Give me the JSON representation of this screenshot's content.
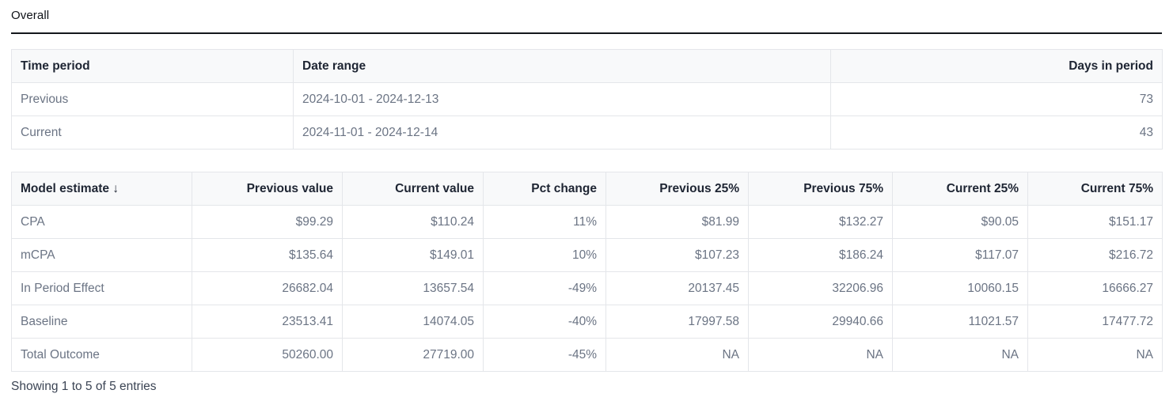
{
  "title": "Overall",
  "periods_table": {
    "columns": [
      {
        "key": "time_period",
        "label": "Time period",
        "align": "left"
      },
      {
        "key": "date_range",
        "label": "Date range",
        "align": "left"
      },
      {
        "key": "days_in_period",
        "label": "Days in period",
        "align": "right"
      }
    ],
    "rows": [
      [
        "Previous",
        "2024-10-01 - 2024-12-13",
        "73"
      ],
      [
        "Current",
        "2024-11-01 - 2024-12-14",
        "43"
      ]
    ]
  },
  "estimates_table": {
    "sort": {
      "column": "Model estimate",
      "direction": "descending",
      "icon": "↓"
    },
    "columns": [
      {
        "key": "model_estimate",
        "label": "Model estimate",
        "align": "left",
        "sorted": true
      },
      {
        "key": "previous_value",
        "label": "Previous value",
        "align": "right"
      },
      {
        "key": "current_value",
        "label": "Current value",
        "align": "right"
      },
      {
        "key": "pct_change",
        "label": "Pct change",
        "align": "right"
      },
      {
        "key": "previous_25",
        "label": "Previous 25%",
        "align": "right"
      },
      {
        "key": "previous_75",
        "label": "Previous 75%",
        "align": "right"
      },
      {
        "key": "current_25",
        "label": "Current 25%",
        "align": "right"
      },
      {
        "key": "current_75",
        "label": "Current 75%",
        "align": "right"
      }
    ],
    "rows": [
      [
        "CPA",
        "$99.29",
        "$110.24",
        "11%",
        "$81.99",
        "$132.27",
        "$90.05",
        "$151.17"
      ],
      [
        "mCPA",
        "$135.64",
        "$149.01",
        "10%",
        "$107.23",
        "$186.24",
        "$117.07",
        "$216.72"
      ],
      [
        "In Period Effect",
        "26682.04",
        "13657.54",
        "-49%",
        "20137.45",
        "32206.96",
        "10060.15",
        "16666.27"
      ],
      [
        "Baseline",
        "23513.41",
        "14074.05",
        "-40%",
        "17997.58",
        "29940.66",
        "11021.57",
        "17477.72"
      ],
      [
        "Total Outcome",
        "50260.00",
        "27719.00",
        "-45%",
        "NA",
        "NA",
        "NA",
        "NA"
      ]
    ]
  },
  "footer": {
    "info": "Showing 1 to 5 of 5 entries"
  },
  "colors": {
    "header_background": "#f8f9fa",
    "header_text": "#1e2533",
    "body_text": "#6b7484",
    "border": "#e4e6ea",
    "title_rule": "#14171c",
    "info_text": "#3b4454"
  }
}
